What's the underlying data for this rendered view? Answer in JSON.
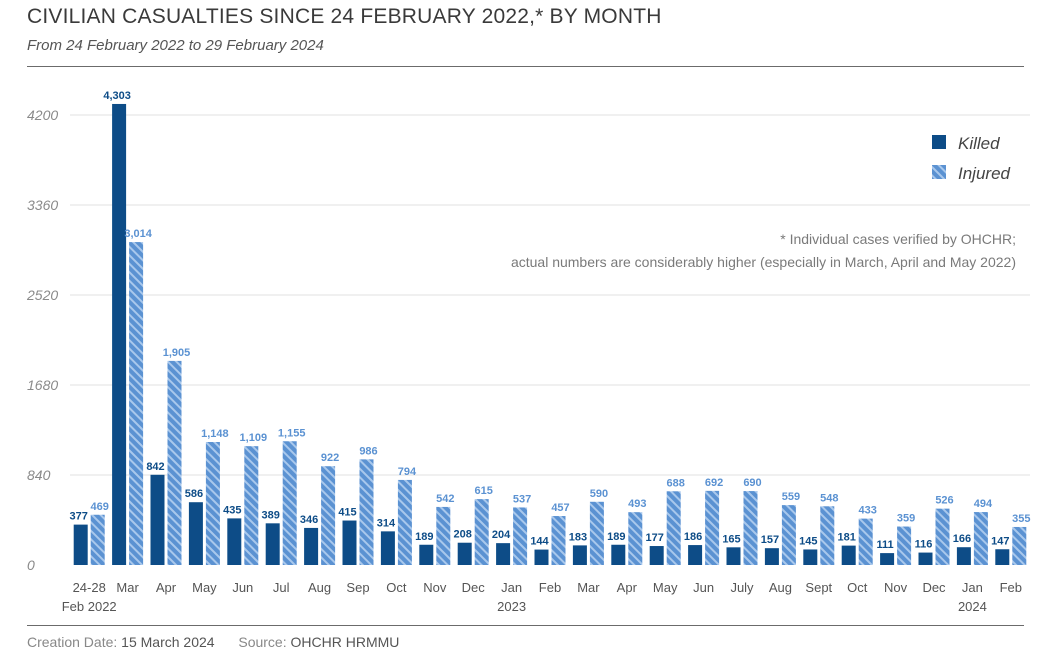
{
  "header": {
    "title": "CIVILIAN CASUALTIES SINCE 24 FEBRUARY 2022,* BY MONTH",
    "subtitle": "From 24 February 2022 to 29 February 2024"
  },
  "footer": {
    "creation_label": "Creation Date:",
    "creation_date": "15 March 2024",
    "source_label": "Source:",
    "source": "OHCHR HRMMU"
  },
  "colors": {
    "killed": "#0d4c87",
    "injured": "#5b92d2",
    "injured_stripe": "#a9c8ec",
    "gridline": "#e2e2e2"
  },
  "chart_data": {
    "type": "bar",
    "title": "CIVILIAN CASUALTIES SINCE 24 FEBRUARY 2022,* BY MONTH",
    "subtitle": "From 24 February 2022 to 29 February 2024",
    "categories": [
      "24-28",
      "Mar",
      "Apr",
      "May",
      "Jun",
      "Jul",
      "Aug",
      "Sep",
      "Oct",
      "Nov",
      "Dec",
      "Jan",
      "Feb",
      "Mar",
      "Apr",
      "May",
      "Jun",
      "July",
      "Aug",
      "Sept",
      "Oct",
      "Nov",
      "Dec",
      "Jan",
      "Feb"
    ],
    "category_sublabels": [
      "Feb 2022",
      "",
      "",
      "",
      "",
      "",
      "",
      "",
      "",
      "",
      "",
      "2023",
      "",
      "",
      "",
      "",
      "",
      "",
      "",
      "",
      "",
      "",
      "",
      "2024",
      ""
    ],
    "series": [
      {
        "name": "Killed",
        "values": [
          377,
          4303,
          842,
          586,
          435,
          389,
          346,
          415,
          314,
          189,
          208,
          204,
          144,
          183,
          189,
          177,
          186,
          165,
          157,
          145,
          181,
          111,
          116,
          166,
          147
        ],
        "labels": [
          "377",
          "4,303",
          "842",
          "586",
          "435",
          "389",
          "346",
          "415",
          "314",
          "189",
          "208",
          "204",
          "144",
          "183",
          "189",
          "177",
          "186",
          "165",
          "157",
          "145",
          "181",
          "111",
          "116",
          "166",
          "147"
        ]
      },
      {
        "name": "Injured",
        "values": [
          469,
          3014,
          1905,
          1148,
          1109,
          1155,
          922,
          986,
          794,
          542,
          615,
          537,
          457,
          590,
          493,
          688,
          692,
          690,
          559,
          548,
          433,
          359,
          526,
          494,
          355
        ],
        "labels": [
          "469",
          "3,014",
          "1,905",
          "1,148",
          "1,109",
          "1,155",
          "922",
          "986",
          "794",
          "542",
          "615",
          "537",
          "457",
          "590",
          "493",
          "688",
          "692",
          "690",
          "559",
          "548",
          "433",
          "359",
          "526",
          "494",
          "355"
        ]
      }
    ],
    "y_ticks": [
      0,
      840,
      1680,
      2520,
      3360,
      4200
    ],
    "ylim": [
      0,
      4400
    ],
    "grid": true,
    "legend_position": "top-right",
    "annotation": [
      "* Individual cases verified by OHCHR;",
      "actual numbers are considerably higher (especially in March, April and May 2022)"
    ]
  }
}
